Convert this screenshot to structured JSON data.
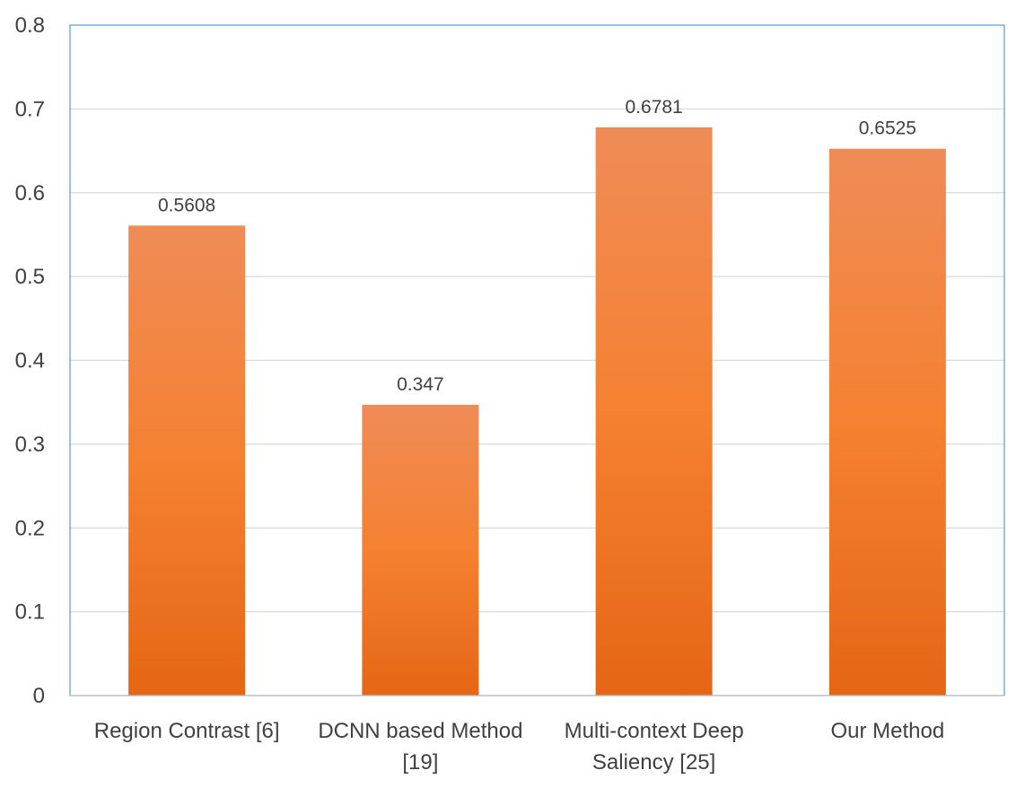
{
  "chart_data": {
    "type": "bar",
    "title": "",
    "xlabel": "",
    "ylabel": "",
    "categories": [
      [
        "Region Contrast [6]"
      ],
      [
        "DCNN based Method",
        "[19]"
      ],
      [
        "Multi-context Deep",
        "Saliency [25]"
      ],
      [
        "Our Method"
      ]
    ],
    "values": [
      0.5608,
      0.347,
      0.6781,
      0.6525
    ],
    "data_labels": [
      "0.5608",
      "0.347",
      "0.6781",
      "0.6525"
    ],
    "ylim": [
      0,
      0.8
    ],
    "yticks": [
      0,
      0.1,
      0.2,
      0.3,
      0.4,
      0.5,
      0.6,
      0.7,
      0.8
    ],
    "ytick_labels": [
      "0",
      "0.1",
      "0.2",
      "0.3",
      "0.4",
      "0.5",
      "0.6",
      "0.7",
      "0.8"
    ],
    "grid": true,
    "legend": "none",
    "colors": {
      "bar_top": "#ef8c57",
      "bar_mid": "#f58131",
      "bar_bottom": "#e56614",
      "plot_border": "#5b9bd5",
      "grid": "#d9d9d9",
      "text": "#404040"
    }
  }
}
